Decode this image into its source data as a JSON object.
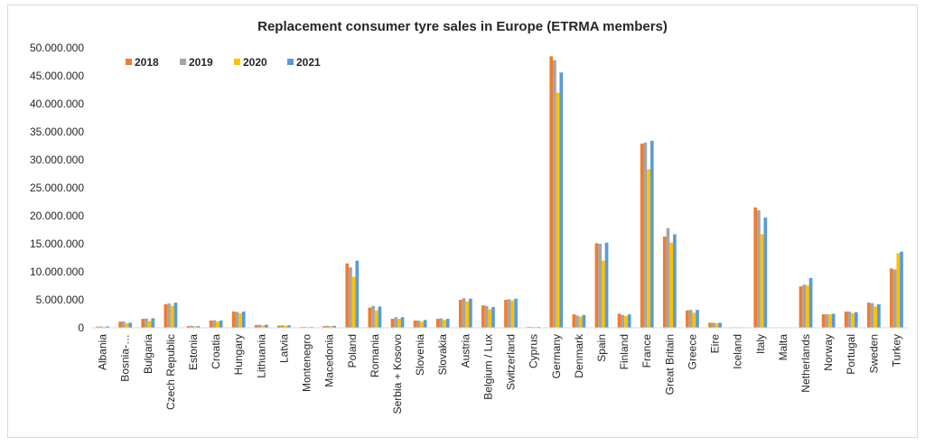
{
  "chart_data": {
    "type": "bar",
    "title": "Replacement consumer tyre sales in Europe (ETRMA members)",
    "xlabel": "",
    "ylabel": "",
    "ylim": [
      0,
      50000000
    ],
    "yticks": [
      "0",
      "5.000.000",
      "10.000.000",
      "15.000.000",
      "20.000.000",
      "25.000.000",
      "30.000.000",
      "35.000.000",
      "40.000.000",
      "45.000.000",
      "50.000.000"
    ],
    "legend_position": "top-left",
    "grid": false,
    "categories": [
      "Albania",
      "Bosnia-…",
      "Bulgaria",
      "Czech Republic",
      "Estonia",
      "Croatia",
      "Hungary",
      "Lithuania",
      "Latvia",
      "Montenegro",
      "Macedonia",
      "Poland",
      "Romania",
      "Serbia + Kosovo",
      "Slovenia",
      "Slovakia",
      "Austria",
      "Belgium / Lux",
      "Switzerland",
      "Cyprus",
      "Germany",
      "Denmark",
      "Spain",
      "Finland",
      "France",
      "Great Britain",
      "Greece",
      "Eire",
      "Iceland",
      "Italy",
      "Malta",
      "Netherlands",
      "Norway",
      "Portugal",
      "Sweden",
      "Turkey"
    ],
    "series": [
      {
        "name": "2018",
        "color": "#ED7D31",
        "values": [
          200000,
          1100000,
          1600000,
          4200000,
          300000,
          1300000,
          2900000,
          500000,
          400000,
          150000,
          300000,
          11500000,
          3600000,
          1600000,
          1300000,
          1600000,
          5000000,
          4000000,
          5000000,
          150000,
          48500000,
          2400000,
          15100000,
          2500000,
          32900000,
          16300000,
          3100000,
          900000,
          100000,
          21500000,
          50000,
          7400000,
          2400000,
          2900000,
          4500000,
          10600000
        ]
      },
      {
        "name": "2019",
        "color": "#A5A5A5",
        "values": [
          250000,
          1150000,
          1650000,
          4350000,
          350000,
          1350000,
          2850000,
          550000,
          450000,
          150000,
          350000,
          10800000,
          3900000,
          1900000,
          1300000,
          1700000,
          5300000,
          3900000,
          5100000,
          150000,
          47800000,
          2200000,
          15000000,
          2300000,
          33100000,
          17800000,
          3200000,
          900000,
          100000,
          21000000,
          50000,
          7700000,
          2400000,
          2900000,
          4400000,
          10400000
        ]
      },
      {
        "name": "2020",
        "color": "#FFC000",
        "values": [
          150000,
          800000,
          1200000,
          3900000,
          250000,
          1100000,
          2600000,
          400000,
          350000,
          120000,
          300000,
          9100000,
          3100000,
          1600000,
          1100000,
          1400000,
          4700000,
          3300000,
          4900000,
          120000,
          42000000,
          2000000,
          12000000,
          2100000,
          28300000,
          15200000,
          2700000,
          800000,
          80000,
          16700000,
          40000,
          7600000,
          2400000,
          2600000,
          3800000,
          13300000
        ]
      },
      {
        "name": "2021",
        "color": "#5B9BD5",
        "values": [
          250000,
          900000,
          1700000,
          4500000,
          300000,
          1300000,
          2900000,
          550000,
          450000,
          150000,
          350000,
          12000000,
          3800000,
          1900000,
          1400000,
          1600000,
          5200000,
          3700000,
          5200000,
          150000,
          45600000,
          2300000,
          15200000,
          2400000,
          33400000,
          16700000,
          3200000,
          900000,
          100000,
          19700000,
          50000,
          8900000,
          2500000,
          2800000,
          4200000,
          13600000
        ]
      }
    ]
  }
}
